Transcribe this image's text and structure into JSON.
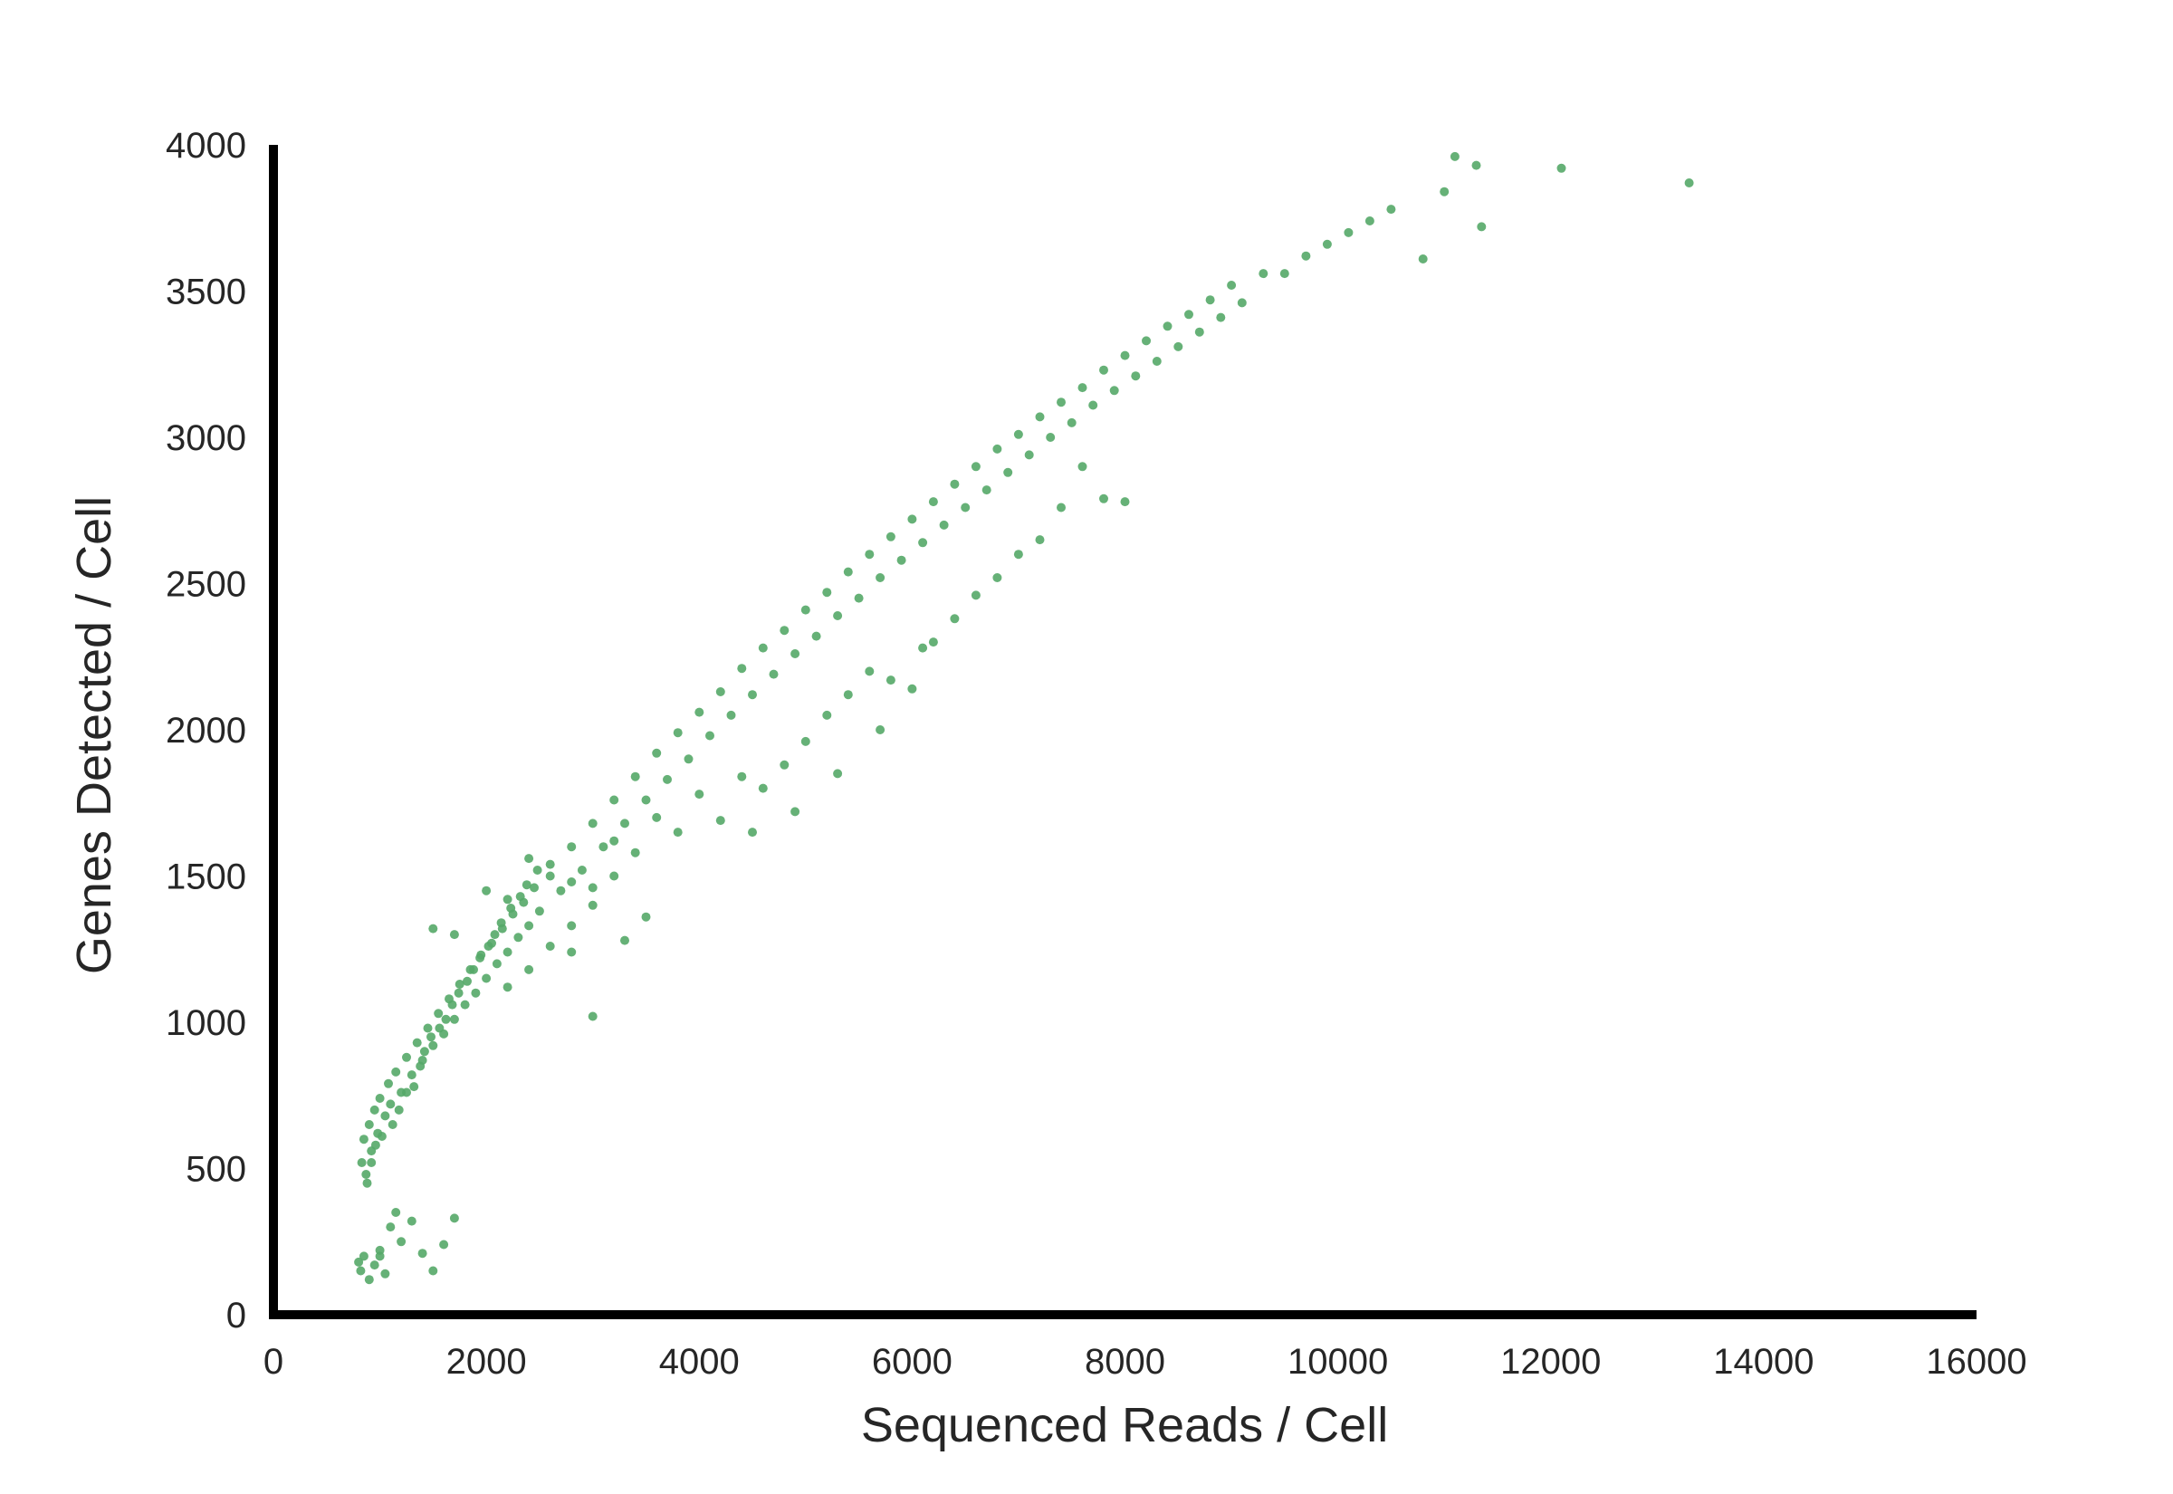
{
  "chart_data": {
    "type": "scatter",
    "title": "",
    "xlabel": "Sequenced Reads / Cell",
    "ylabel": "Genes Detected / Cell",
    "xlim": [
      0,
      16000
    ],
    "ylim": [
      0,
      4000
    ],
    "x_ticks": [
      "0",
      "2000",
      "4000",
      "6000",
      "8000",
      "10000",
      "12000",
      "14000",
      "16000"
    ],
    "y_ticks": [
      "0",
      "500",
      "1000",
      "1500",
      "2000",
      "2500",
      "3000",
      "3500",
      "4000"
    ],
    "grid": false,
    "legend": "none",
    "marker_color": "#55a868",
    "series": [
      {
        "name": "",
        "points": [
          [
            830,
            520
          ],
          [
            850,
            600
          ],
          [
            870,
            480
          ],
          [
            900,
            650
          ],
          [
            920,
            560
          ],
          [
            950,
            700
          ],
          [
            980,
            620
          ],
          [
            1000,
            740
          ],
          [
            1050,
            680
          ],
          [
            1080,
            790
          ],
          [
            1100,
            720
          ],
          [
            1150,
            830
          ],
          [
            1200,
            760
          ],
          [
            1250,
            880
          ],
          [
            1300,
            820
          ],
          [
            1350,
            930
          ],
          [
            1400,
            870
          ],
          [
            1450,
            980
          ],
          [
            1500,
            920
          ],
          [
            1550,
            1030
          ],
          [
            1600,
            960
          ],
          [
            1650,
            1080
          ],
          [
            1700,
            1010
          ],
          [
            1750,
            1130
          ],
          [
            1800,
            1060
          ],
          [
            1850,
            1180
          ],
          [
            1900,
            1100
          ],
          [
            1950,
            1230
          ],
          [
            2000,
            1150
          ],
          [
            2050,
            1270
          ],
          [
            2100,
            1200
          ],
          [
            2150,
            1320
          ],
          [
            2200,
            1240
          ],
          [
            2250,
            1370
          ],
          [
            2300,
            1290
          ],
          [
            2350,
            1410
          ],
          [
            2400,
            1330
          ],
          [
            2450,
            1460
          ],
          [
            2500,
            1380
          ],
          [
            2600,
            1500
          ],
          [
            2700,
            1450
          ],
          [
            2800,
            1600
          ],
          [
            2900,
            1520
          ],
          [
            3000,
            1680
          ],
          [
            3100,
            1600
          ],
          [
            3200,
            1760
          ],
          [
            3300,
            1680
          ],
          [
            3400,
            1840
          ],
          [
            3500,
            1760
          ],
          [
            3600,
            1920
          ],
          [
            3700,
            1830
          ],
          [
            3800,
            1990
          ],
          [
            3900,
            1900
          ],
          [
            4000,
            2060
          ],
          [
            4100,
            1980
          ],
          [
            4200,
            2130
          ],
          [
            4300,
            2050
          ],
          [
            4400,
            2210
          ],
          [
            4500,
            2120
          ],
          [
            4600,
            2280
          ],
          [
            4700,
            2190
          ],
          [
            4800,
            2340
          ],
          [
            4900,
            2260
          ],
          [
            5000,
            2410
          ],
          [
            5100,
            2320
          ],
          [
            5200,
            2470
          ],
          [
            5300,
            2390
          ],
          [
            5400,
            2540
          ],
          [
            5500,
            2450
          ],
          [
            5600,
            2600
          ],
          [
            5700,
            2520
          ],
          [
            5800,
            2660
          ],
          [
            5900,
            2580
          ],
          [
            6000,
            2720
          ],
          [
            6100,
            2640
          ],
          [
            6200,
            2780
          ],
          [
            6300,
            2700
          ],
          [
            6400,
            2840
          ],
          [
            6500,
            2760
          ],
          [
            6600,
            2900
          ],
          [
            6700,
            2820
          ],
          [
            6800,
            2960
          ],
          [
            6900,
            2880
          ],
          [
            7000,
            3010
          ],
          [
            7100,
            2940
          ],
          [
            7200,
            3070
          ],
          [
            7300,
            3000
          ],
          [
            7400,
            3120
          ],
          [
            7500,
            3050
          ],
          [
            7600,
            3170
          ],
          [
            7700,
            3110
          ],
          [
            7800,
            3230
          ],
          [
            7900,
            3160
          ],
          [
            8000,
            3280
          ],
          [
            8100,
            3210
          ],
          [
            8200,
            3330
          ],
          [
            8300,
            3260
          ],
          [
            8400,
            3380
          ],
          [
            8500,
            3310
          ],
          [
            8600,
            3420
          ],
          [
            8700,
            3360
          ],
          [
            8800,
            3470
          ],
          [
            8900,
            3410
          ],
          [
            9000,
            3520
          ],
          [
            9100,
            3460
          ],
          [
            9300,
            3560
          ],
          [
            9500,
            3560
          ],
          [
            9700,
            3620
          ],
          [
            9900,
            3660
          ],
          [
            10100,
            3700
          ],
          [
            10300,
            3740
          ],
          [
            10500,
            3780
          ],
          [
            10800,
            3610
          ],
          [
            11000,
            3840
          ],
          [
            11100,
            3960
          ],
          [
            11300,
            3930
          ],
          [
            11350,
            3720
          ],
          [
            12100,
            3920
          ],
          [
            13300,
            3870
          ],
          [
            1500,
            1320
          ],
          [
            1700,
            1300
          ],
          [
            2000,
            1450
          ],
          [
            2200,
            1420
          ],
          [
            2400,
            1560
          ],
          [
            2600,
            1540
          ],
          [
            2800,
            1480
          ],
          [
            3000,
            1460
          ],
          [
            3200,
            1620
          ],
          [
            3400,
            1580
          ],
          [
            3500,
            1360
          ],
          [
            3600,
            1700
          ],
          [
            3800,
            1650
          ],
          [
            4000,
            1780
          ],
          [
            4200,
            1690
          ],
          [
            4400,
            1840
          ],
          [
            4600,
            1800
          ],
          [
            4800,
            1880
          ],
          [
            5000,
            1960
          ],
          [
            5200,
            2050
          ],
          [
            5400,
            2120
          ],
          [
            5600,
            2200
          ],
          [
            5800,
            2170
          ],
          [
            6000,
            2140
          ],
          [
            6200,
            2300
          ],
          [
            6400,
            2380
          ],
          [
            6600,
            2460
          ],
          [
            6800,
            2520
          ],
          [
            7000,
            2600
          ],
          [
            7200,
            2650
          ],
          [
            7400,
            2760
          ],
          [
            7800,
            2790
          ],
          [
            8000,
            2780
          ],
          [
            7600,
            2900
          ],
          [
            2200,
            1120
          ],
          [
            2400,
            1180
          ],
          [
            2600,
            1260
          ],
          [
            2800,
            1330
          ],
          [
            3000,
            1400
          ],
          [
            3200,
            1500
          ],
          [
            3000,
            1020
          ],
          [
            2800,
            1240
          ],
          [
            3300,
            1280
          ],
          [
            4500,
            1650
          ],
          [
            4900,
            1720
          ],
          [
            5300,
            1850
          ],
          [
            5700,
            2000
          ],
          [
            6100,
            2280
          ],
          [
            800,
            180
          ],
          [
            820,
            150
          ],
          [
            850,
            200
          ],
          [
            900,
            120
          ],
          [
            950,
            170
          ],
          [
            1000,
            220
          ],
          [
            1050,
            140
          ],
          [
            1100,
            300
          ],
          [
            1150,
            350
          ],
          [
            1300,
            320
          ],
          [
            1400,
            210
          ],
          [
            1500,
            150
          ],
          [
            1600,
            240
          ],
          [
            1700,
            330
          ],
          [
            1000,
            200
          ],
          [
            1200,
            250
          ],
          [
            880,
            450
          ],
          [
            920,
            520
          ],
          [
            960,
            580
          ],
          [
            1020,
            610
          ],
          [
            1120,
            650
          ],
          [
            1180,
            700
          ],
          [
            1250,
            760
          ],
          [
            1320,
            780
          ],
          [
            1380,
            850
          ],
          [
            1420,
            900
          ],
          [
            1480,
            950
          ],
          [
            1560,
            980
          ],
          [
            1620,
            1010
          ],
          [
            1680,
            1060
          ],
          [
            1740,
            1100
          ],
          [
            1820,
            1140
          ],
          [
            1880,
            1180
          ],
          [
            1940,
            1220
          ],
          [
            2020,
            1260
          ],
          [
            2080,
            1300
          ],
          [
            2140,
            1340
          ],
          [
            2230,
            1390
          ],
          [
            2320,
            1430
          ],
          [
            2380,
            1470
          ],
          [
            2480,
            1520
          ]
        ]
      }
    ]
  }
}
